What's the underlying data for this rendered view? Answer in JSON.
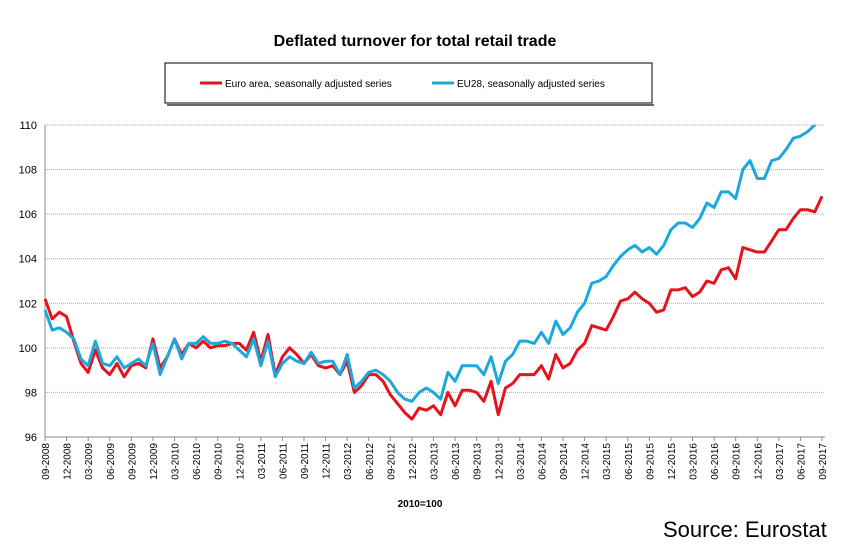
{
  "chart_data": {
    "type": "line",
    "title": "Deflated turnover for total retail trade",
    "xlabel": "2010=100",
    "source": "Source: Eurostat",
    "categories": [
      "09-2008",
      null,
      null,
      "12-2008",
      null,
      null,
      "03-2009",
      null,
      null,
      "06-2009",
      null,
      null,
      "09-2009",
      null,
      null,
      "12-2009",
      null,
      null,
      "03-2010",
      null,
      null,
      "06-2010",
      null,
      null,
      "09-2010",
      null,
      null,
      "12-2010",
      null,
      null,
      "03-2011",
      null,
      null,
      "06-2011",
      null,
      null,
      "09-2011",
      null,
      null,
      "12-2011",
      null,
      null,
      "03-2012",
      null,
      null,
      "06-2012",
      null,
      null,
      "09-2012",
      null,
      null,
      "12-2012",
      null,
      null,
      "03-2013",
      null,
      null,
      "06-2013",
      null,
      null,
      "09-2013",
      null,
      null,
      "12-2013",
      null,
      null,
      "03-2014",
      null,
      null,
      "06-2014",
      null,
      null,
      "09-2014",
      null,
      null,
      "12-2014",
      null,
      null,
      "03-2015",
      null,
      null,
      "06-2015",
      null,
      null,
      "09-2015",
      null,
      null,
      "12-2015",
      null,
      null,
      "03-2016",
      null,
      null,
      "06-2016",
      null,
      null,
      "09-2016",
      null,
      null,
      "12-2016",
      null,
      null,
      "03-2017",
      null,
      null,
      "06-2017",
      null,
      null,
      "09-2017"
    ],
    "series": [
      {
        "name": "Euro area, seasonally adjusted series",
        "color": "#e3141b",
        "values": [
          102.2,
          101.3,
          101.6,
          101.4,
          100.3,
          99.3,
          98.9,
          99.9,
          99.1,
          98.8,
          99.3,
          98.7,
          99.2,
          99.3,
          99.1,
          100.4,
          99.1,
          99.6,
          100.4,
          99.7,
          100.2,
          100.0,
          100.3,
          100.0,
          100.1,
          100.1,
          100.2,
          100.2,
          99.9,
          100.7,
          99.4,
          100.6,
          98.8,
          99.6,
          100.0,
          99.7,
          99.3,
          99.7,
          99.2,
          99.1,
          99.2,
          98.8,
          99.4,
          98.0,
          98.3,
          98.8,
          98.8,
          98.5,
          97.9,
          97.5,
          97.1,
          96.8,
          97.3,
          97.2,
          97.4,
          97.0,
          98.0,
          97.4,
          98.1,
          98.1,
          98.0,
          97.6,
          98.5,
          97.0,
          98.2,
          98.4,
          98.8,
          98.8,
          98.8,
          99.2,
          98.6,
          99.7,
          99.1,
          99.3,
          99.9,
          100.2,
          101.0,
          100.9,
          100.8,
          101.4,
          102.1,
          102.2,
          102.5,
          102.2,
          102.0,
          101.6,
          101.7,
          102.6,
          102.6,
          102.7,
          102.3,
          102.5,
          103.0,
          102.9,
          103.5,
          103.6,
          103.1,
          104.5,
          104.4,
          104.3,
          104.3,
          104.8,
          105.3,
          105.3,
          105.8,
          106.2,
          106.2,
          106.1,
          106.8
        ]
      },
      {
        "name": "EU28, seasonally adjusted series",
        "color": "#1ba9dd",
        "values": [
          101.7,
          100.8,
          100.9,
          100.7,
          100.4,
          99.5,
          99.2,
          100.3,
          99.3,
          99.2,
          99.6,
          99.1,
          99.3,
          99.5,
          99.2,
          100.2,
          98.8,
          99.6,
          100.4,
          99.5,
          100.2,
          100.2,
          100.5,
          100.2,
          100.2,
          100.3,
          100.2,
          99.9,
          99.6,
          100.4,
          99.2,
          100.3,
          98.7,
          99.3,
          99.6,
          99.4,
          99.3,
          99.8,
          99.3,
          99.4,
          99.4,
          98.8,
          99.7,
          98.2,
          98.5,
          98.9,
          99.0,
          98.8,
          98.5,
          98.0,
          97.7,
          97.6,
          98.0,
          98.2,
          98.0,
          97.7,
          98.9,
          98.5,
          99.2,
          99.2,
          99.2,
          98.8,
          99.6,
          98.4,
          99.4,
          99.7,
          100.3,
          100.3,
          100.2,
          100.7,
          100.2,
          101.2,
          100.6,
          100.9,
          101.6,
          102.0,
          102.9,
          103.0,
          103.2,
          103.7,
          104.1,
          104.4,
          104.6,
          104.3,
          104.5,
          104.2,
          104.6,
          105.3,
          105.6,
          105.6,
          105.4,
          105.8,
          106.5,
          106.3,
          107.0,
          107.0,
          106.7,
          108.0,
          108.4,
          107.6,
          107.6,
          108.4,
          108.5,
          108.9,
          109.4,
          109.5,
          109.7,
          110.0,
          110.3
        ]
      }
    ],
    "ylim": [
      96,
      110
    ],
    "yticks": [
      96,
      98,
      100,
      102,
      104,
      106,
      108,
      110
    ],
    "grid": true
  }
}
